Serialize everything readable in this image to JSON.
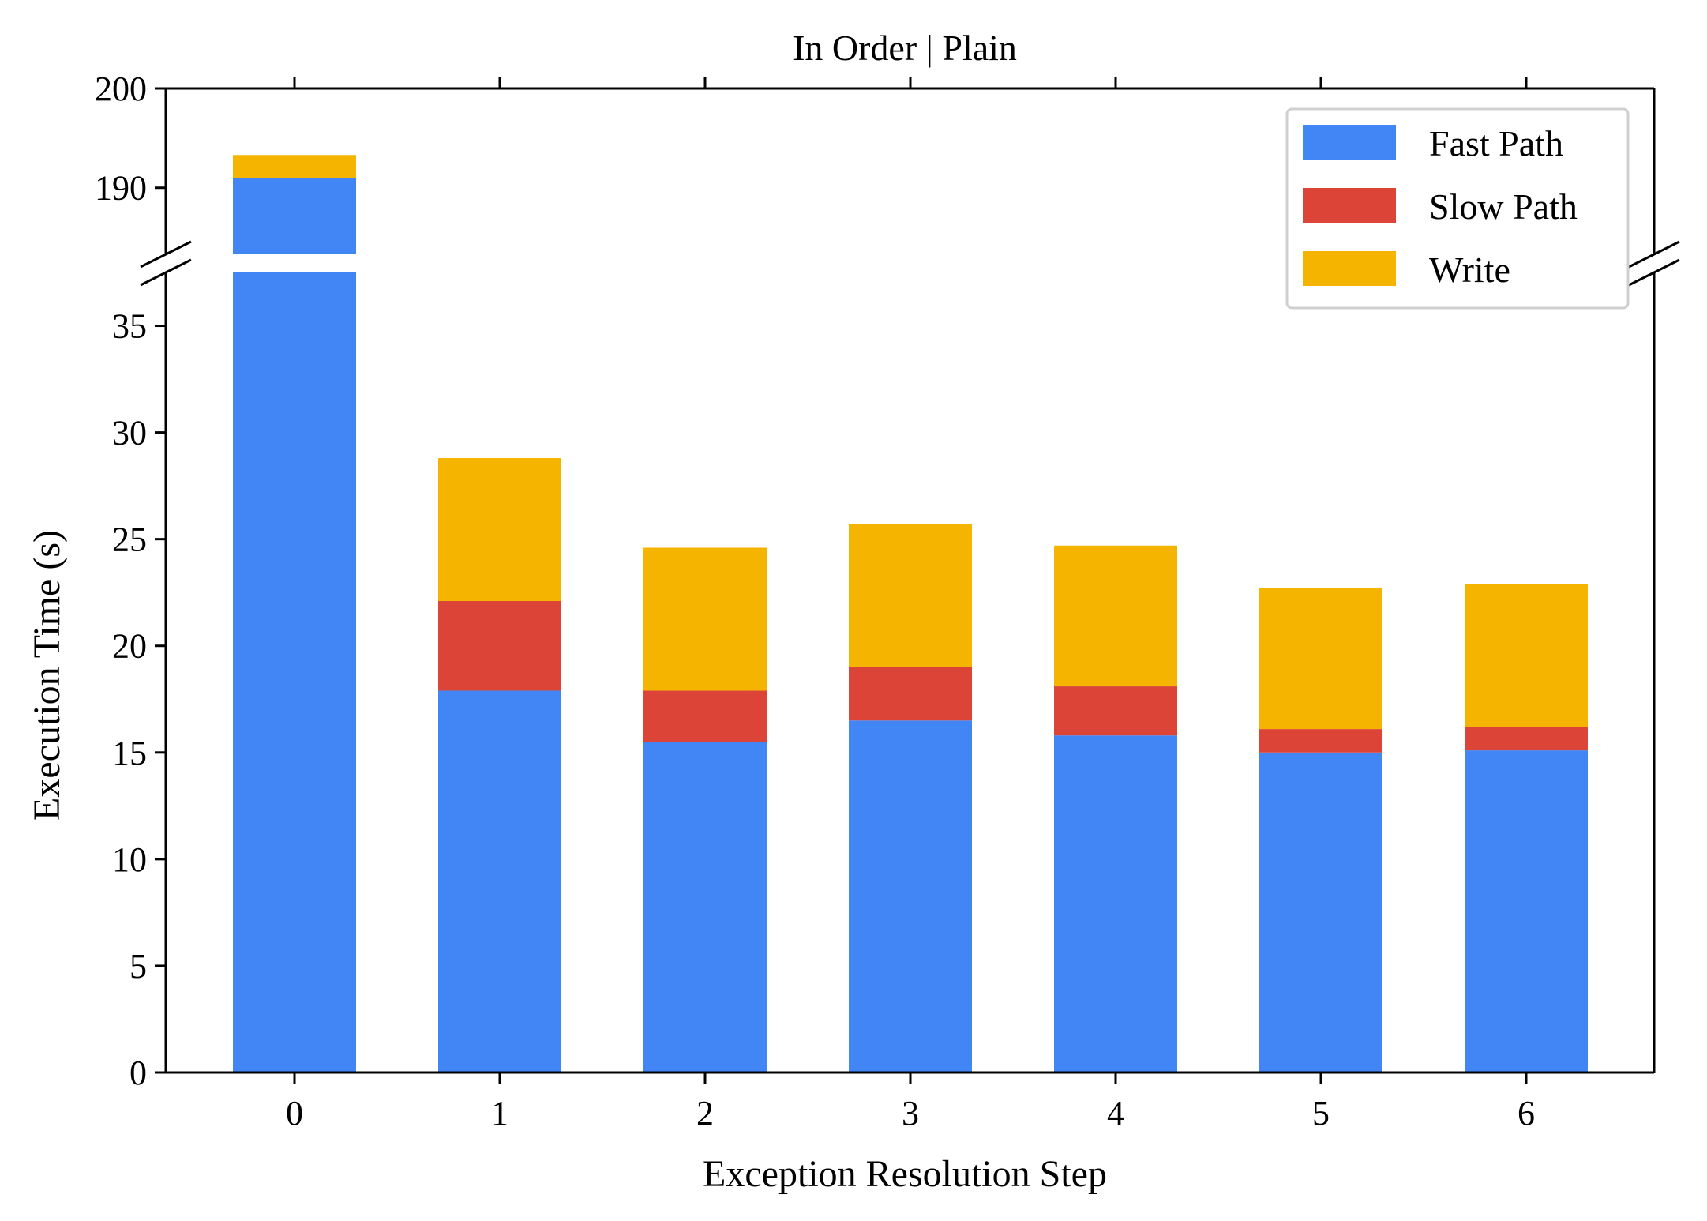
{
  "chart_data": {
    "type": "bar",
    "stacked": true,
    "broken_y_axis": true,
    "title": "In Order | Plain",
    "xlabel": "Exception Resolution Step",
    "ylabel": "Execution Time (s)",
    "categories": [
      "0",
      "1",
      "2",
      "3",
      "4",
      "5",
      "6"
    ],
    "series": [
      {
        "name": "Fast Path",
        "color": "#4285f4",
        "values": [
          191.0,
          17.9,
          15.5,
          16.5,
          15.8,
          15.0,
          15.1
        ]
      },
      {
        "name": "Slow Path",
        "color": "#db4437",
        "values": [
          0.0,
          4.2,
          2.4,
          2.5,
          2.3,
          1.1,
          1.1
        ]
      },
      {
        "name": "Write",
        "color": "#f4b400",
        "values": [
          2.3,
          6.7,
          6.7,
          6.7,
          6.6,
          6.6,
          6.7
        ]
      }
    ],
    "ylim_lower": [
      0,
      37.5
    ],
    "ylim_upper": [
      183.3,
      200
    ],
    "yticks_lower": [
      "0",
      "5",
      "10",
      "15",
      "20",
      "25",
      "30",
      "35"
    ],
    "yticks_upper": [
      "190",
      "200"
    ],
    "legend_position": "top-right",
    "grid": false
  }
}
